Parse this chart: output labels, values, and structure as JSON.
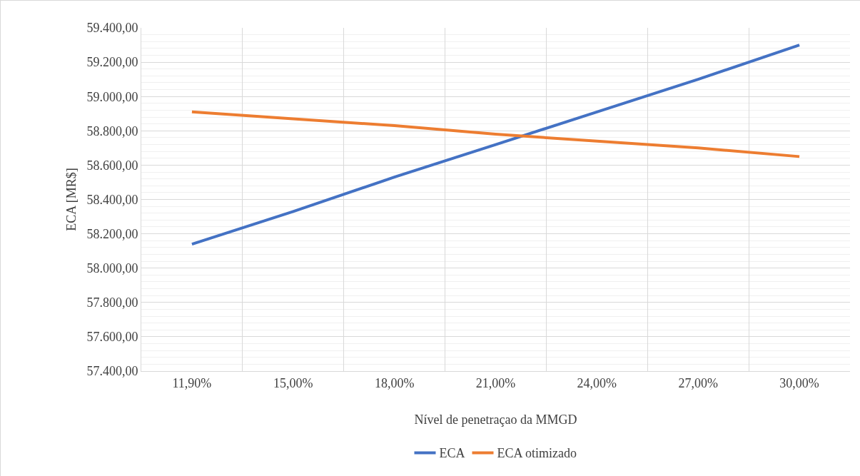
{
  "chart_data": {
    "type": "line",
    "xlabel": "Nível de penetraçao da MMGD",
    "ylabel": "ECA [MR$]",
    "categories": [
      "11,90%",
      "15,00%",
      "18,00%",
      "21,00%",
      "24,00%",
      "27,00%",
      "30,00%"
    ],
    "series": [
      {
        "name": "ECA",
        "color": "#4472c4",
        "values": [
          58140,
          58330,
          58530,
          58720,
          58910,
          59100,
          59300
        ]
      },
      {
        "name": "ECA otimizado",
        "color": "#ed7d31",
        "values": [
          58910,
          58870,
          58830,
          58780,
          58740,
          58700,
          58650
        ]
      }
    ],
    "ylim": [
      57400,
      59400
    ],
    "yticks": [
      {
        "value": 57400,
        "label": "57.400,00"
      },
      {
        "value": 57600,
        "label": "57.600,00"
      },
      {
        "value": 57800,
        "label": "57.800,00"
      },
      {
        "value": 58000,
        "label": "58.000,00"
      },
      {
        "value": 58200,
        "label": "58.200,00"
      },
      {
        "value": 58400,
        "label": "58.400,00"
      },
      {
        "value": 58600,
        "label": "58.600,00"
      },
      {
        "value": 58800,
        "label": "58.800,00"
      },
      {
        "value": 59000,
        "label": "59.000,00"
      },
      {
        "value": 59200,
        "label": "59.200,00"
      },
      {
        "value": 59400,
        "label": "59.400,00"
      }
    ],
    "grid": true,
    "legend": "bottom",
    "marker": "none",
    "line_style": "solid"
  }
}
